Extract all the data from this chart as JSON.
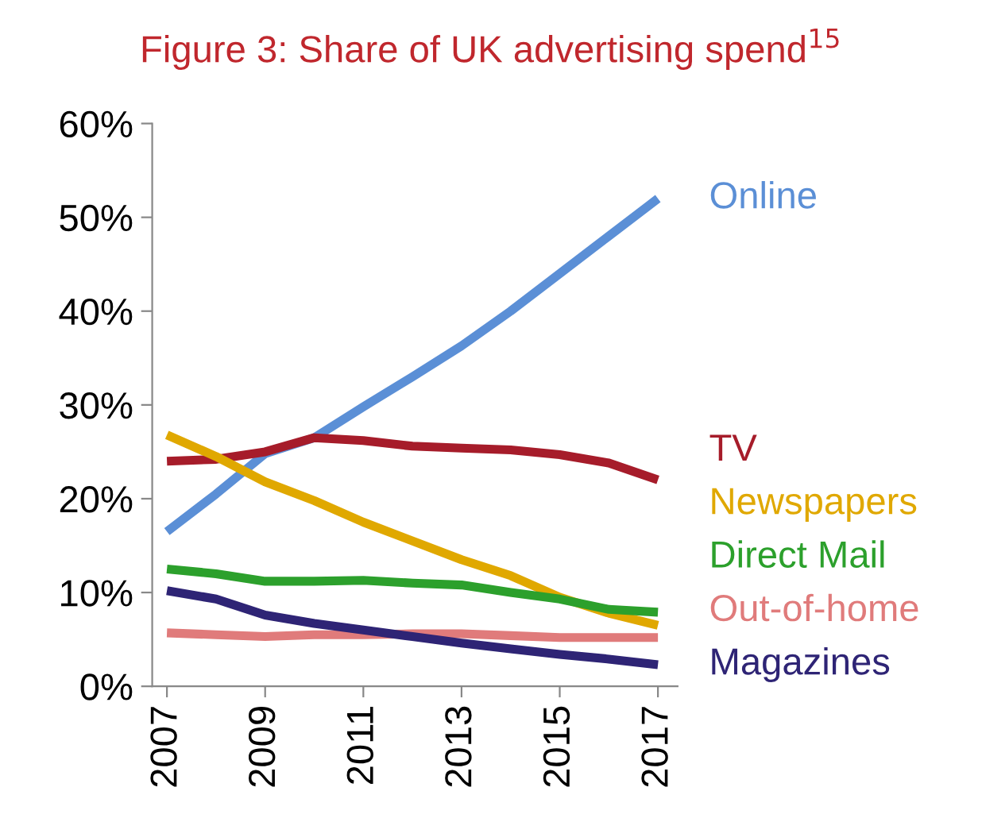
{
  "chart_data": {
    "type": "line",
    "title": "Figure 3: Share of UK advertising spend$^{15}$",
    "x": [
      2007,
      2008,
      2009,
      2010,
      2011,
      2012,
      2013,
      2014,
      2015,
      2016,
      2017
    ],
    "xlim": [
      2006.7,
      2017.4
    ],
    "xticks": [
      2007,
      2009,
      2011,
      2013,
      2015,
      2017
    ],
    "ylim": [
      0,
      60
    ],
    "yticks": [
      {
        "value": 0,
        "label": "0%"
      },
      {
        "value": 10,
        "label": "10%"
      },
      {
        "value": 20,
        "label": "20%"
      },
      {
        "value": 30,
        "label": "30%"
      },
      {
        "value": 40,
        "label": "40%"
      },
      {
        "value": 50,
        "label": "50%"
      },
      {
        "value": 60,
        "label": "60%"
      }
    ],
    "grid": false,
    "legend": false,
    "marker": "none",
    "line_style": "solid",
    "series": [
      {
        "name": "Online",
        "color": "#5b8fd6",
        "values": [
          16.5,
          20.5,
          24.8,
          26.5,
          29.8,
          33,
          36.3,
          40,
          44,
          48,
          52
        ]
      },
      {
        "name": "TV",
        "color": "#a61c2a",
        "values": [
          24,
          24.2,
          25,
          26.5,
          26.2,
          25.6,
          25.4,
          25.2,
          24.7,
          23.8,
          22
        ]
      },
      {
        "name": "Newspapers",
        "color": "#e0a800",
        "values": [
          26.8,
          24.5,
          21.8,
          19.8,
          17.5,
          15.5,
          13.5,
          11.8,
          9.5,
          7.8,
          6.5
        ]
      },
      {
        "name": "Direct Mail",
        "color": "#2ca02c",
        "values": [
          12.5,
          12,
          11.2,
          11.2,
          11.3,
          11,
          10.8,
          10,
          9.3,
          8.2,
          7.9
        ]
      },
      {
        "name": "Out-of-home",
        "color": "#e07b7b",
        "values": [
          5.7,
          5.5,
          5.3,
          5.5,
          5.5,
          5.6,
          5.6,
          5.4,
          5.2,
          5.2,
          5.2
        ]
      },
      {
        "name": "Magazines",
        "color": "#2e2475",
        "values": [
          10.2,
          9.3,
          7.6,
          6.7,
          6,
          5.3,
          4.6,
          4,
          3.4,
          2.9,
          2.3
        ]
      }
    ]
  }
}
